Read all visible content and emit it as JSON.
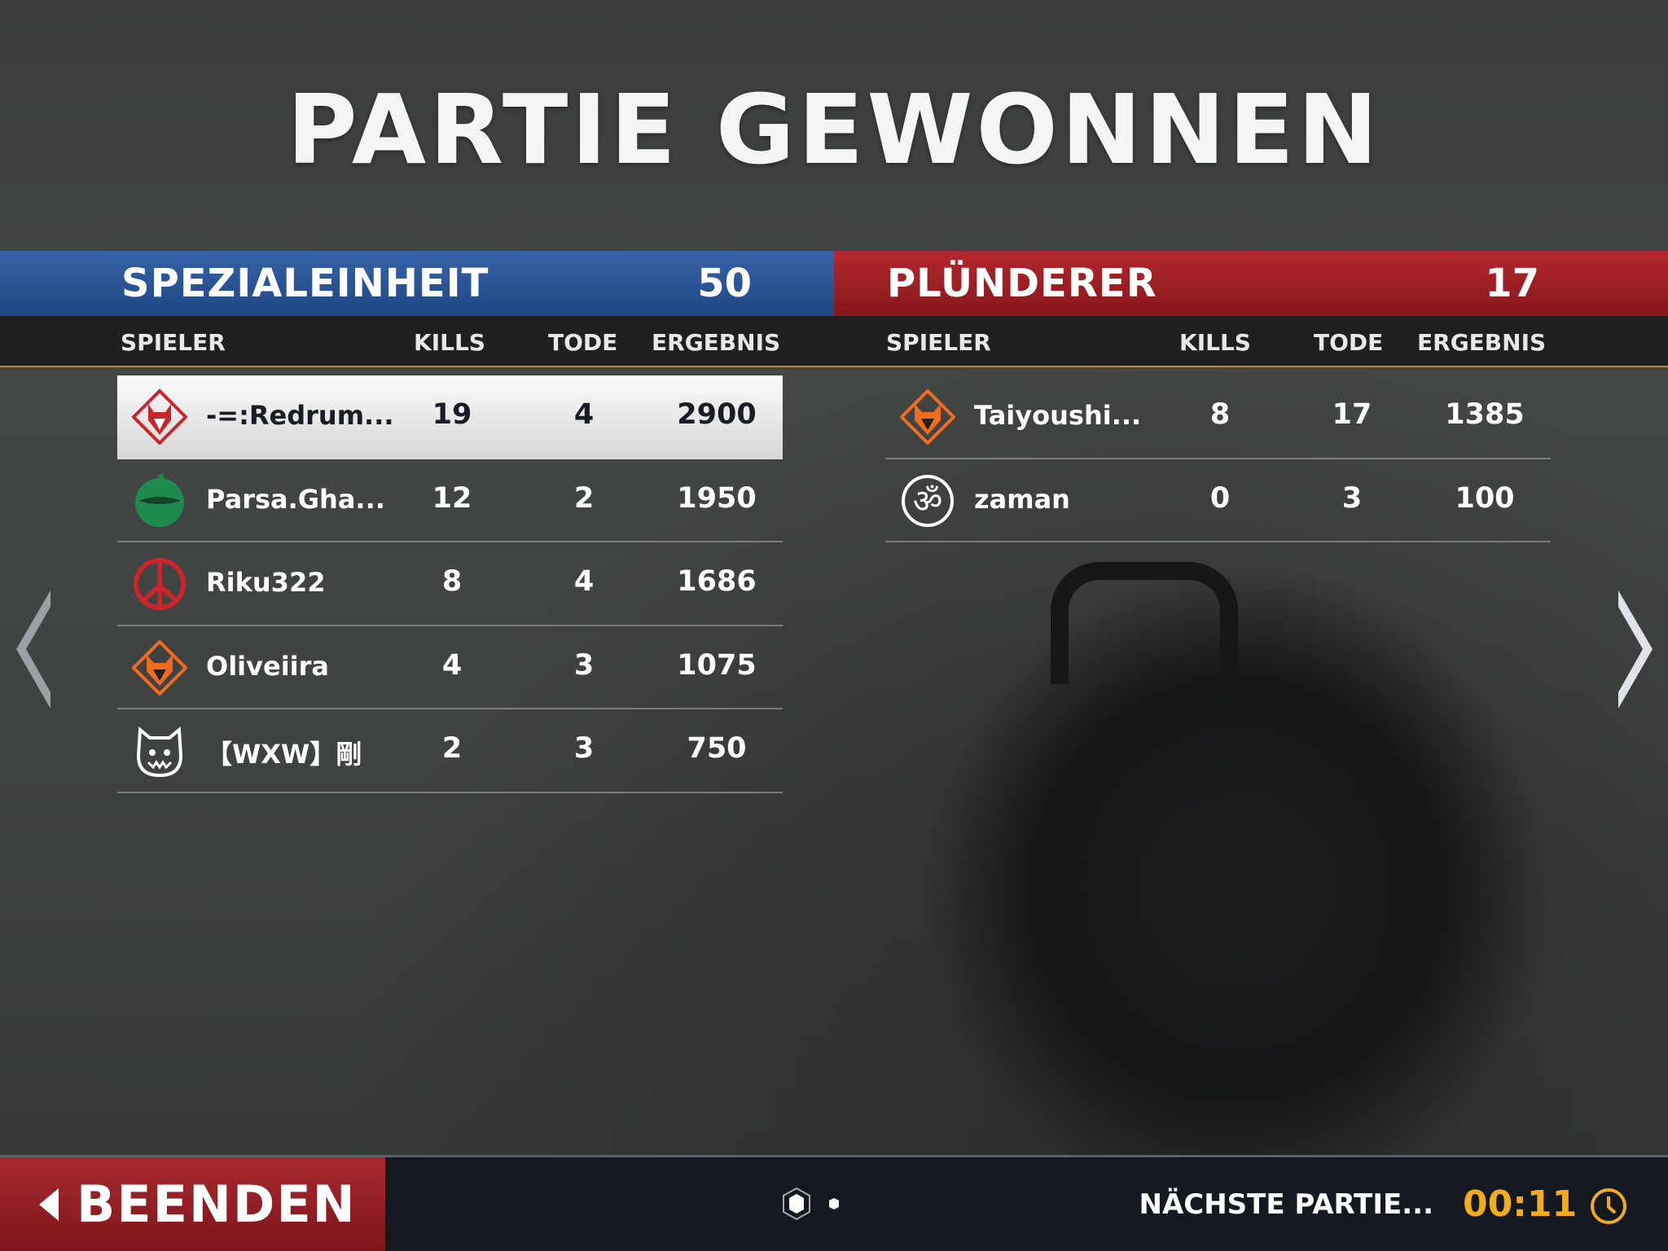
{
  "title": "PARTIE GEWONNEN",
  "columns": {
    "player": "SPIELER",
    "kills": "KILLS",
    "deaths": "TODE",
    "score": "ERGEBNIS"
  },
  "teams": [
    {
      "name": "SPEZIALEINHEIT",
      "score": "50",
      "color": "#2a559a",
      "players": [
        {
          "icon": "wolf-red-icon",
          "name": "-=:Redrum...",
          "kills": "19",
          "deaths": "4",
          "score": "2900",
          "highlighted": true
        },
        {
          "icon": "ninja-green-icon",
          "name": "Parsa.Gha...",
          "kills": "12",
          "deaths": "2",
          "score": "1950"
        },
        {
          "icon": "peace-sign-icon",
          "name": "Riku322",
          "kills": "8",
          "deaths": "4",
          "score": "1686"
        },
        {
          "icon": "fox-orange-icon",
          "name": "Oliveiira",
          "kills": "4",
          "deaths": "3",
          "score": "1075"
        },
        {
          "icon": "cat-mask-icon",
          "name": "【WXW】剛",
          "kills": "2",
          "deaths": "3",
          "score": "750"
        }
      ]
    },
    {
      "name": "PLÜNDERER",
      "score": "17",
      "color": "#a0222a",
      "players": [
        {
          "icon": "fox-orange-icon",
          "name": "Taiyoushi...",
          "kills": "8",
          "deaths": "17",
          "score": "1385"
        },
        {
          "icon": "om-symbol-icon",
          "name": "zaman",
          "kills": "0",
          "deaths": "3",
          "score": "100"
        }
      ]
    }
  ],
  "footer": {
    "quit_label": "BEENDEN",
    "next_label": "NÄCHSTE PARTIE...",
    "timer": "00:11",
    "accent": "#f0ac1e",
    "page_indicator": {
      "pages": 2,
      "current": 1
    }
  }
}
